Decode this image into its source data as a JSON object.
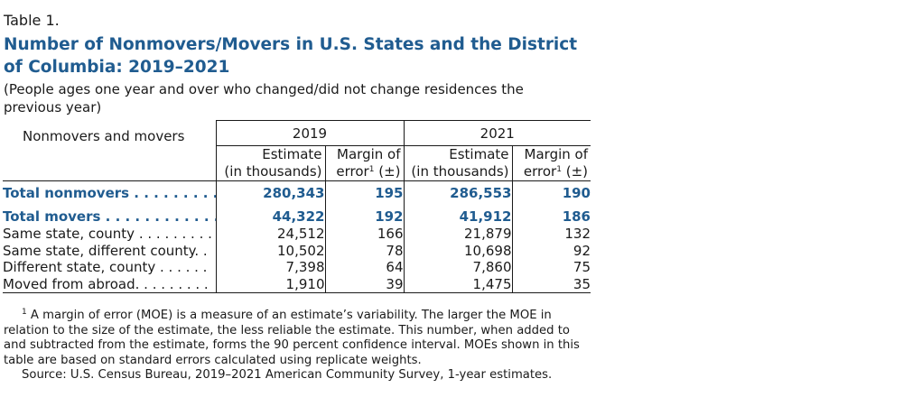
{
  "table_label": "Table 1.",
  "title": "Number of Nonmovers/Movers in U.S. States and the District of Columbia: 2019–2021",
  "subtitle": "(People ages one year and over who changed/did not change residences the previous year)",
  "columns": {
    "stub_header": "Nonmovers and movers",
    "years": [
      "2019",
      "2021"
    ],
    "estimate_header": [
      "Estimate",
      "(in thousands)"
    ],
    "moe_header": [
      "Margin of",
      "error",
      "1",
      " (±)"
    ]
  },
  "rows": [
    {
      "label": "Total nonmovers",
      "dots": " . . . . . . . . . . .",
      "est2019": "280,343",
      "moe2019": "195",
      "est2021": "286,553",
      "moe2021": "190",
      "bold": true
    },
    {
      "label": "Total movers",
      "dots": " . . . . . . . . . . . . . .",
      "est2019": "44,322",
      "moe2019": "192",
      "est2021": "41,912",
      "moe2021": "186",
      "bold": true
    },
    {
      "label": "Same state, county",
      "dots": " . . . . . . . . . .",
      "est2019": "24,512",
      "moe2019": "166",
      "est2021": "21,879",
      "moe2021": "132",
      "bold": false
    },
    {
      "label": "Same state, different county",
      "dots": ". .",
      "est2019": "10,502",
      "moe2019": "78",
      "est2021": "10,698",
      "moe2021": "92",
      "bold": false
    },
    {
      "label": "Different state, county",
      "dots": " . . . . . .",
      "est2019": "7,398",
      "moe2019": "64",
      "est2021": "7,860",
      "moe2021": "75",
      "bold": false
    },
    {
      "label": "Moved from abroad",
      "dots": ". . . . . . . . .",
      "est2019": "1,910",
      "moe2019": "39",
      "est2021": "1,475",
      "moe2021": "35",
      "bold": false
    }
  ],
  "footnote_marker": "1",
  "footnote": " A margin of error (MOE) is a measure of an estimate’s variability. The larger the MOE in relation to the size of the estimate, the less reliable the estimate. This number, when added to and subtracted from the estimate, forms the 90 percent confidence interval. MOEs shown in this table are based on standard errors calculated using replicate weights.",
  "source": "Source: U.S. Census Bureau, 2019–2021 American Community Survey, 1-year estimates.",
  "colors": {
    "title": "#205c90",
    "text": "#1a1a1a"
  }
}
